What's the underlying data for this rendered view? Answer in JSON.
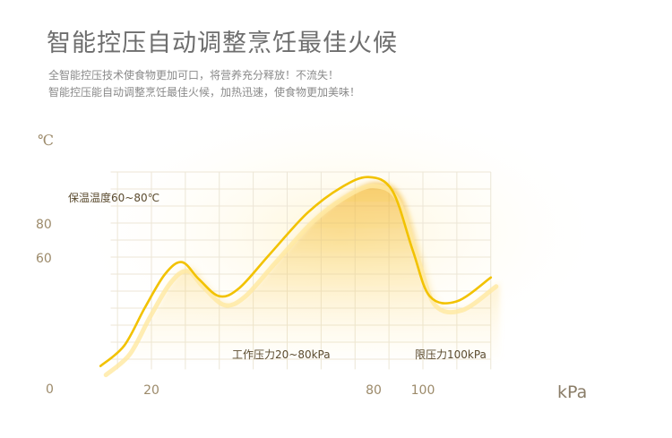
{
  "headline": "智能控压自动调整烹饪最佳火候",
  "subtitle_lines": [
    "全智能控压技术使食物更加可口，将营养充分释放！不流失！",
    "智能控压能自动调整烹饪最佳火候，加热迅速，使食物更加美味！"
  ],
  "chart_data": {
    "type": "line",
    "ylabel": "℃",
    "xlabel": "kPa",
    "origin_label": "0",
    "x_ticks": [
      20,
      80,
      100
    ],
    "y_ticks": [
      60,
      80
    ],
    "xlim": [
      0,
      130
    ],
    "ylim": [
      -7,
      120
    ],
    "grid": true,
    "legend": "none",
    "annotations": [
      {
        "text": "保温温度60~80℃"
      },
      {
        "text": "工作压力20~80kPa"
      },
      {
        "text": "限压力100kPa"
      }
    ],
    "series": [
      {
        "values": [
          {
            "x": 5,
            "y": -4
          },
          {
            "x": 12,
            "y": 8
          },
          {
            "x": 18,
            "y": 30
          },
          {
            "x": 24,
            "y": 50
          },
          {
            "x": 29,
            "y": 57
          },
          {
            "x": 34,
            "y": 47
          },
          {
            "x": 40,
            "y": 37
          },
          {
            "x": 46,
            "y": 42
          },
          {
            "x": 55,
            "y": 62
          },
          {
            "x": 66,
            "y": 86
          },
          {
            "x": 76,
            "y": 101
          },
          {
            "x": 84,
            "y": 107
          },
          {
            "x": 91,
            "y": 99
          },
          {
            "x": 97,
            "y": 64
          },
          {
            "x": 102,
            "y": 37
          },
          {
            "x": 110,
            "y": 34
          },
          {
            "x": 120,
            "y": 48
          }
        ]
      }
    ],
    "colors": {
      "line": "#f2c200",
      "band": "#f2a300",
      "axis": "#8a6d2e",
      "grid": "#ece6d6"
    }
  }
}
